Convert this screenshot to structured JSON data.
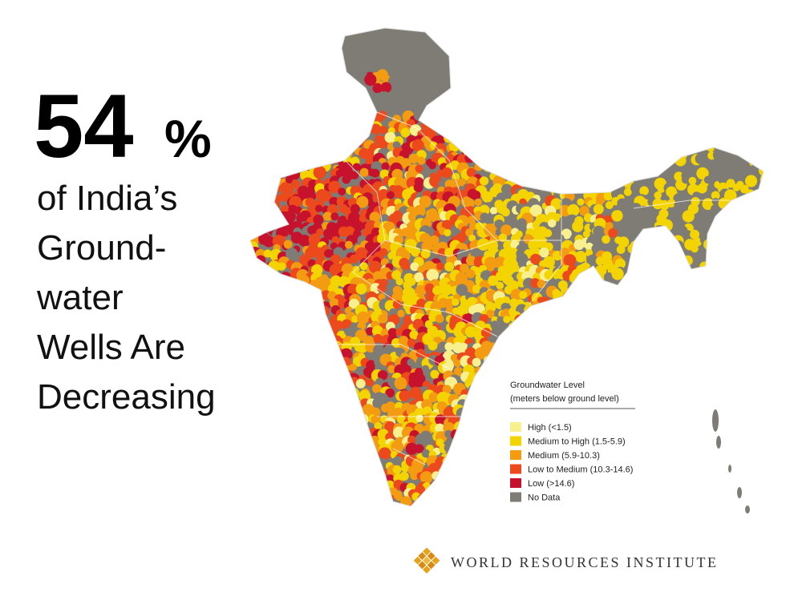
{
  "headline": {
    "number": "54",
    "unit": "%"
  },
  "subtitle_lines": [
    "of India’s",
    "Ground-",
    "water",
    "Wells Are",
    "Decreasing"
  ],
  "legend": {
    "title_lines": [
      "Groundwater Level",
      "(meters below ground level)"
    ],
    "items": [
      {
        "label": "High (<1.5)",
        "color": "#f8f08e"
      },
      {
        "label": "Medium to High (1.5-5.9)",
        "color": "#f4d400"
      },
      {
        "label": "Medium (5.9-10.3)",
        "color": "#f39c12"
      },
      {
        "label": "Low to Medium (10.3-14.6)",
        "color": "#ec4a1c"
      },
      {
        "label": "Low (>14.6)",
        "color": "#c6122c"
      },
      {
        "label": "No Data",
        "color": "#7e7c74"
      }
    ]
  },
  "logo": {
    "text": "WORLD RESOURCES INSTITUTE"
  }
}
